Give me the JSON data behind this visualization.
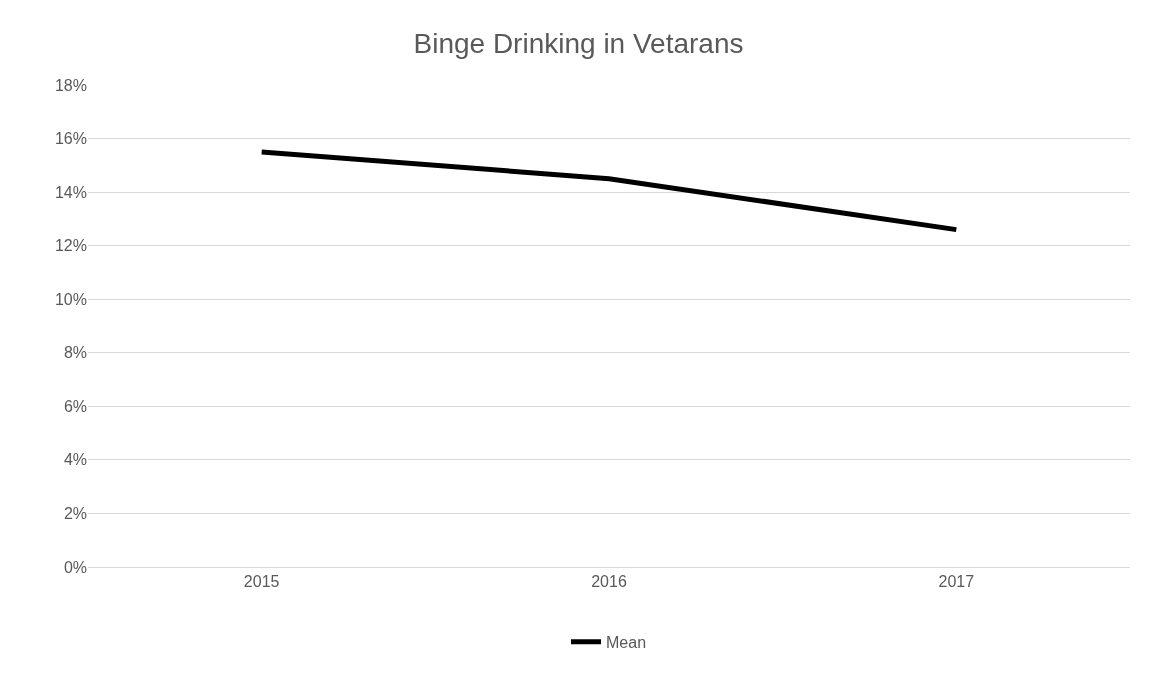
{
  "chart_data": {
    "type": "line",
    "title": "Binge Drinking in Vetarans",
    "categories": [
      "2015",
      "2016",
      "2017"
    ],
    "series": [
      {
        "name": "Mean",
        "color": "#000000",
        "values": [
          15.5,
          14.5,
          12.6
        ]
      }
    ],
    "ylim": [
      0,
      18
    ],
    "yticks": [
      {
        "value": 0,
        "label": "0%"
      },
      {
        "value": 2,
        "label": "2%"
      },
      {
        "value": 4,
        "label": "4%"
      },
      {
        "value": 6,
        "label": "6%"
      },
      {
        "value": 8,
        "label": "8%"
      },
      {
        "value": 10,
        "label": "10%"
      },
      {
        "value": 12,
        "label": "12%"
      },
      {
        "value": 14,
        "label": "14%"
      },
      {
        "value": 16,
        "label": "16%"
      },
      {
        "value": 18,
        "label": "18%"
      }
    ],
    "grid": "y",
    "legend": "bottom",
    "marker": "none",
    "line_style": "solid"
  }
}
